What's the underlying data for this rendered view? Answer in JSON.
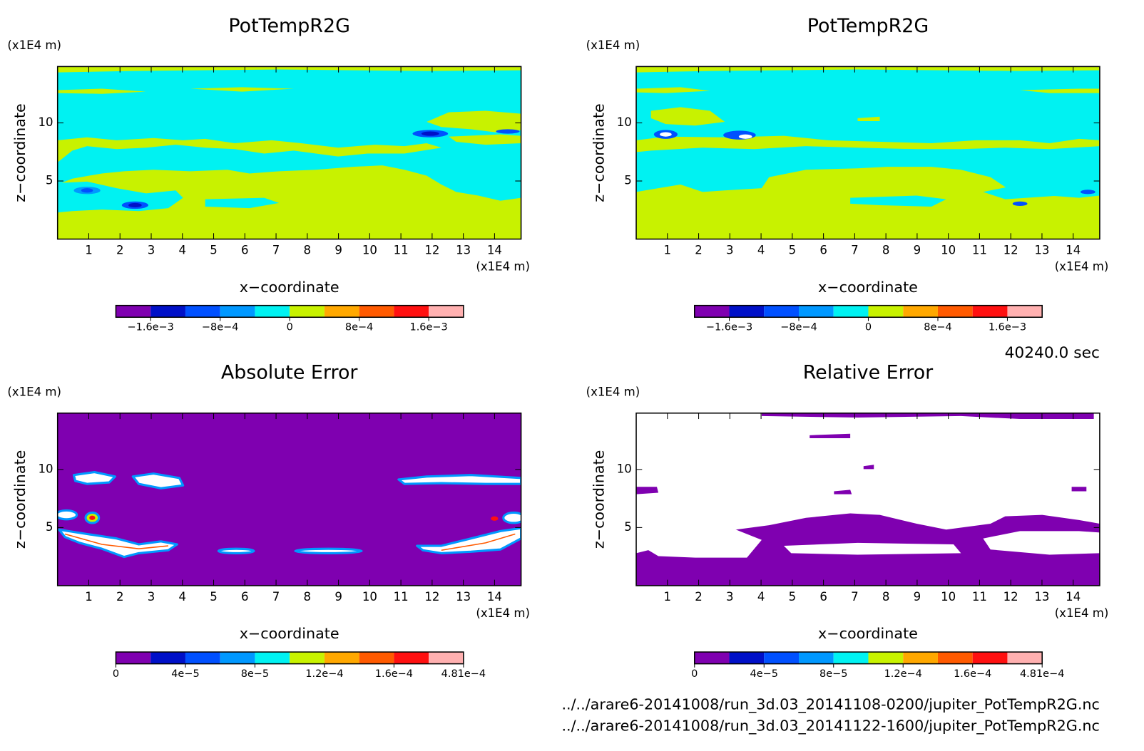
{
  "chart_data": [
    {
      "type": "contour",
      "title": "PotTempR2G",
      "xlabel": "x−coordinate",
      "ylabel": "z−coordinate",
      "xunit": "(x1E4 m)",
      "yunit": "(x1E4 m)",
      "xlim": [
        0,
        14.85
      ],
      "ylim": [
        0,
        14.85
      ],
      "xticks": [
        1,
        2,
        3,
        4,
        5,
        6,
        7,
        8,
        9,
        10,
        11,
        12,
        13,
        14
      ],
      "yticks": [
        5,
        10
      ],
      "colorbar": {
        "levels": [
          -0.002,
          -0.0016,
          -0.0012,
          -0.0008,
          -0.0004,
          0,
          0.0004,
          0.0008,
          0.0012,
          0.0016,
          0.002
        ],
        "colors": [
          "#7f00b0",
          "#0010c8",
          "#0050ff",
          "#0098ff",
          "#00f2f2",
          "#c8f200",
          "#ffa800",
          "#ff5a00",
          "#ff1010",
          "#ffb0b0"
        ],
        "ticks": [
          {
            "value": -0.0016,
            "label": "−1.6e−3"
          },
          {
            "value": -0.0008,
            "label": "−8e−4"
          },
          0,
          {
            "value": 0.0008,
            "label": "8e−4"
          },
          {
            "value": 0.0016,
            "label": "1.6e−3"
          }
        ]
      }
    },
    {
      "type": "contour",
      "title": "PotTempR2G",
      "xlabel": "x−coordinate",
      "ylabel": "z−coordinate",
      "xunit": "(x1E4 m)",
      "yunit": "(x1E4 m)",
      "xlim": [
        0,
        14.85
      ],
      "ylim": [
        0,
        14.85
      ],
      "xticks": [
        1,
        2,
        3,
        4,
        5,
        6,
        7,
        8,
        9,
        10,
        11,
        12,
        13,
        14
      ],
      "yticks": [
        5,
        10
      ],
      "colorbar": {
        "levels": [
          -0.002,
          -0.0016,
          -0.0012,
          -0.0008,
          -0.0004,
          0,
          0.0004,
          0.0008,
          0.0012,
          0.0016,
          0.002
        ],
        "colors": [
          "#7f00b0",
          "#0010c8",
          "#0050ff",
          "#0098ff",
          "#00f2f2",
          "#c8f200",
          "#ffa800",
          "#ff5a00",
          "#ff1010",
          "#ffb0b0"
        ],
        "ticks": [
          {
            "value": -0.0016,
            "label": "−1.6e−3"
          },
          {
            "value": -0.0008,
            "label": "−8e−4"
          },
          0,
          {
            "value": 0.0008,
            "label": "8e−4"
          },
          {
            "value": 0.0016,
            "label": "1.6e−3"
          }
        ]
      }
    },
    {
      "type": "contour",
      "title": "Absolute Error",
      "xlabel": "x−coordinate",
      "ylabel": "z−coordinate",
      "xunit": "(x1E4 m)",
      "yunit": "(x1E4 m)",
      "xlim": [
        0,
        14.85
      ],
      "ylim": [
        0,
        14.85
      ],
      "xticks": [
        1,
        2,
        3,
        4,
        5,
        6,
        7,
        8,
        9,
        10,
        11,
        12,
        13,
        14
      ],
      "yticks": [
        5,
        10
      ],
      "colorbar": {
        "levels": [
          0,
          2e-05,
          4e-05,
          6e-05,
          8e-05,
          0.0001,
          0.00012,
          0.00014,
          0.00016,
          0.00018,
          0.000481
        ],
        "colors": [
          "#7f00b0",
          "#0010c8",
          "#0050ff",
          "#0098ff",
          "#00f2f2",
          "#c8f200",
          "#ffa800",
          "#ff5a00",
          "#ff1010",
          "#ffb0b0"
        ],
        "ticks": [
          0,
          {
            "value": 4e-05,
            "label": "4e−5"
          },
          {
            "value": 8e-05,
            "label": "8e−5"
          },
          {
            "value": 0.00012,
            "label": "1.2e−4"
          },
          {
            "value": 0.00016,
            "label": "1.6e−4"
          },
          {
            "value": 0.000481,
            "label": "4.81e−4"
          }
        ]
      }
    },
    {
      "type": "contour",
      "title": "Relative Error",
      "xlabel": "x−coordinate",
      "ylabel": "z−coordinate",
      "xunit": "(x1E4 m)",
      "yunit": "(x1E4 m)",
      "xlim": [
        0,
        14.85
      ],
      "ylim": [
        0,
        14.85
      ],
      "xticks": [
        1,
        2,
        3,
        4,
        5,
        6,
        7,
        8,
        9,
        10,
        11,
        12,
        13,
        14
      ],
      "yticks": [
        5,
        10
      ],
      "colorbar": {
        "levels": [
          0,
          2e-05,
          4e-05,
          6e-05,
          8e-05,
          0.0001,
          0.00012,
          0.00014,
          0.00016,
          0.00018,
          0.000481
        ],
        "colors": [
          "#7f00b0",
          "#0010c8",
          "#0050ff",
          "#0098ff",
          "#00f2f2",
          "#c8f200",
          "#ffa800",
          "#ff5a00",
          "#ff1010",
          "#ffb0b0"
        ],
        "ticks": [
          0,
          {
            "value": 4e-05,
            "label": "4e−5"
          },
          {
            "value": 8e-05,
            "label": "8e−5"
          },
          {
            "value": 0.00012,
            "label": "1.2e−4"
          },
          {
            "value": 0.00016,
            "label": "1.6e−4"
          },
          {
            "value": 0.000481,
            "label": "4.81e−4"
          }
        ]
      }
    }
  ],
  "footer": {
    "time": "40240.0 sec",
    "files": [
      "../../arare6-20141008/run_3d.03_20141108-0200/jupiter_PotTempR2G.nc",
      "../../arare6-20141008/run_3d.03_20141122-1600/jupiter_PotTempR2G.nc"
    ]
  }
}
